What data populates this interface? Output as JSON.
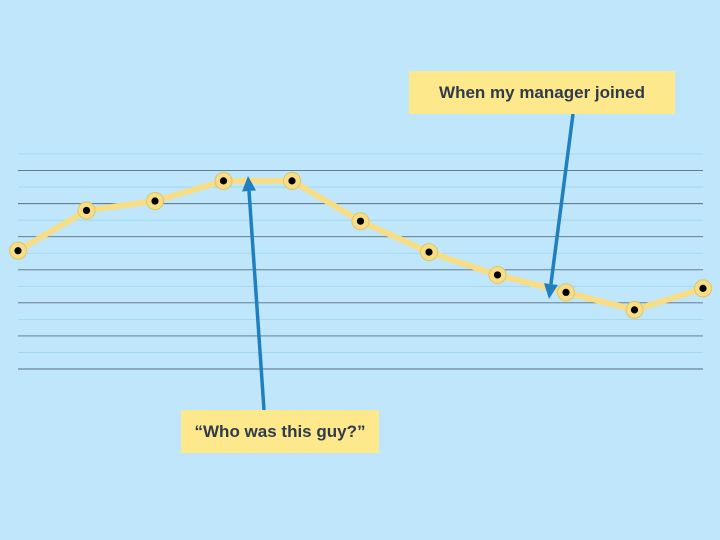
{
  "chart_data": {
    "type": "line",
    "title": "",
    "xlabel": "",
    "ylabel": "",
    "grid": true,
    "x": [
      1,
      2,
      3,
      4,
      5,
      6,
      7,
      8,
      9,
      10,
      11
    ],
    "series": [
      {
        "values": [
          2.4,
          3.9,
          4.25,
          5.0,
          5.0,
          3.5,
          2.35,
          1.5,
          0.85,
          0.2,
          1.0
        ]
      }
    ],
    "ylim": [
      -2.0,
      6.0
    ],
    "annotations": [
      {
        "text": "When my manager joined",
        "points_to_x": 9
      },
      {
        "text": "“Who was this guy?”",
        "points_to_x": 4
      }
    ]
  },
  "colors": {
    "background": "#bfe6fb",
    "line": "#f7de86",
    "marker_fill": "#f7de86",
    "marker_dot": "#000000",
    "arrow": "#1f7fbf",
    "callout_bg": "#fde98c",
    "callout_text": "#2f3b4a",
    "grid_major": "#5a6e80",
    "grid_minor": "#9ed6f0"
  }
}
